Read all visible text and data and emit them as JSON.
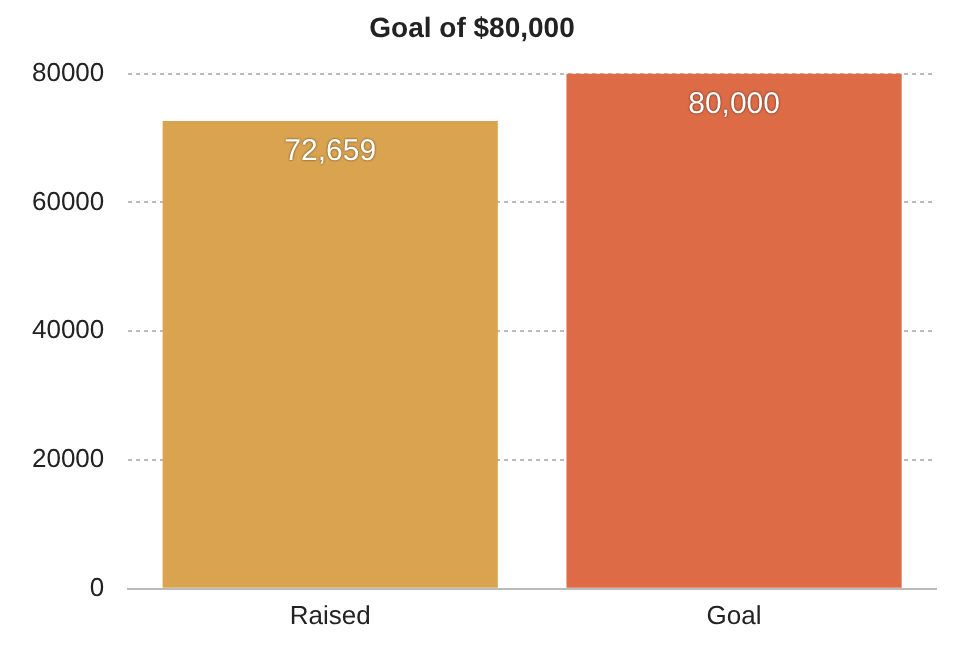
{
  "chart_data": {
    "type": "bar",
    "title": "Goal of $80,000",
    "categories": [
      "Raised",
      "Goal"
    ],
    "values": [
      72659,
      80000
    ],
    "colors": [
      "#daa34f",
      "#dc6b46"
    ],
    "value_labels": [
      "72,659",
      "80,000"
    ],
    "ylim": [
      0,
      80000
    ],
    "yticks": [
      0,
      20000,
      40000,
      60000,
      80000
    ],
    "grid": "y"
  }
}
